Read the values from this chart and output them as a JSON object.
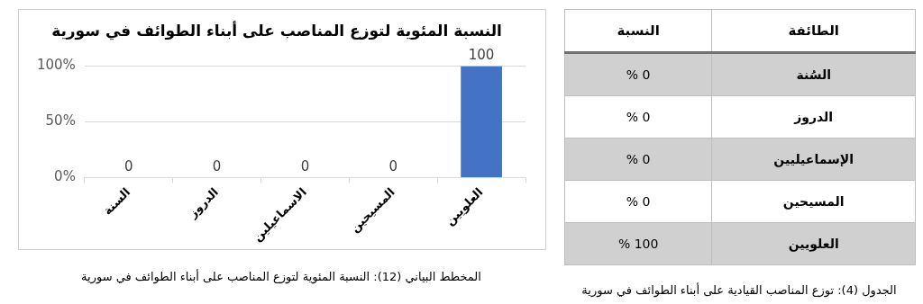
{
  "chart_data": [
    {
      "type": "bar",
      "title": "النسبة المئوية لتوزع المناصب على أبناء الطوائف في سورية",
      "categories": [
        "السنة",
        "الدروز",
        "الاسماعيلين",
        "المسيحين",
        "العلويين"
      ],
      "values": [
        0,
        0,
        0,
        0,
        100
      ],
      "color": "#4472c4",
      "ylim": [
        0,
        100
      ],
      "yticks": [
        {
          "value": 0,
          "label": "0%"
        },
        {
          "value": 50,
          "label": "50%"
        },
        {
          "value": 100,
          "label": "100%"
        }
      ],
      "grid": "y",
      "data_labels": true,
      "annotations": [
        "المخطط البياني (12): النسبة المئوية لتوزع المناصب على أبناء الطوائف في سورية"
      ]
    },
    {
      "type": "other",
      "xlabel": "الطائفة",
      "ylabel": "النسبة",
      "categories": [
        "السُنة",
        "الدروز",
        "الإسماعيليين",
        "المسيحين",
        "العلويين"
      ],
      "value_labels": [
        "% 0",
        "% 0",
        "% 0",
        "% 0",
        "% 100"
      ],
      "annotations": [
        "الجدول (4): توزع المناصب القيادية على أبناء الطوائف في سورية"
      ]
    }
  ]
}
